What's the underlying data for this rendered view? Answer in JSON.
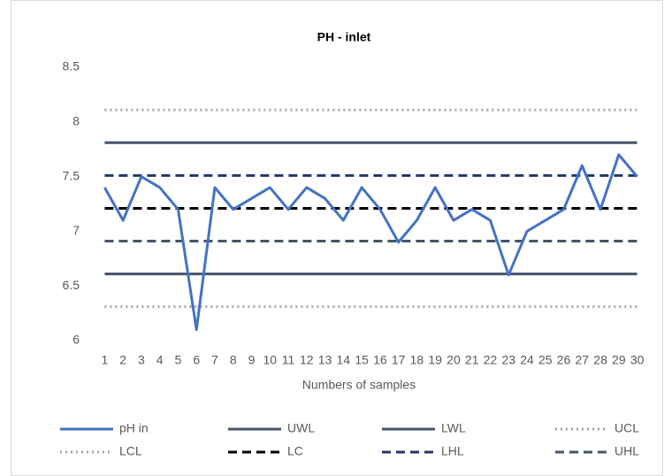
{
  "chart_data": {
    "type": "line",
    "title": "PH - inlet",
    "x_label": "Numbers of samples",
    "categories": [
      "1",
      "2",
      "3",
      "4",
      "5",
      "6",
      "7",
      "8",
      "9",
      "10",
      "11",
      "12",
      "13",
      "14",
      "15",
      "16",
      "17",
      "18",
      "19",
      "20",
      "21",
      "22",
      "23",
      "24",
      "25",
      "26",
      "27",
      "28",
      "29",
      "30"
    ],
    "ylim": [
      6,
      8.5
    ],
    "yticks": [
      6,
      6.5,
      7,
      7.5,
      8,
      8.5
    ],
    "grid": false,
    "legend": "bottom",
    "series": [
      {
        "name": "pH in",
        "color": "#4472c4",
        "style": "solid",
        "values": [
          7.4,
          7.1,
          7.5,
          7.4,
          7.2,
          6.1,
          7.4,
          7.2,
          7.3,
          7.4,
          7.2,
          7.4,
          7.3,
          7.1,
          7.4,
          7.2,
          6.9,
          7.1,
          7.4,
          7.1,
          7.2,
          7.1,
          6.6,
          7.0,
          7.1,
          7.2,
          7.6,
          7.2,
          7.7,
          7.5
        ]
      },
      {
        "name": "UWL",
        "color": "#44546a",
        "style": "solid",
        "values": [
          7.81,
          7.81,
          7.81,
          7.81,
          7.81,
          7.81,
          7.81,
          7.81,
          7.81,
          7.81,
          7.81,
          7.81,
          7.81,
          7.81,
          7.81,
          7.81,
          7.81,
          7.81,
          7.81,
          7.81,
          7.81,
          7.81,
          7.81,
          7.81,
          7.81,
          7.81,
          7.81,
          7.81,
          7.81,
          7.81
        ]
      },
      {
        "name": "LWL",
        "color": "#44546a",
        "style": "solid",
        "values": [
          6.61,
          6.61,
          6.61,
          6.61,
          6.61,
          6.61,
          6.61,
          6.61,
          6.61,
          6.61,
          6.61,
          6.61,
          6.61,
          6.61,
          6.61,
          6.61,
          6.61,
          6.61,
          6.61,
          6.61,
          6.61,
          6.61,
          6.61,
          6.61,
          6.61,
          6.61,
          6.61,
          6.61,
          6.61,
          6.61
        ]
      },
      {
        "name": "UCL",
        "color": "#a5a5a5",
        "style": "dotted",
        "values": [
          8.11,
          8.11,
          8.11,
          8.11,
          8.11,
          8.11,
          8.11,
          8.11,
          8.11,
          8.11,
          8.11,
          8.11,
          8.11,
          8.11,
          8.11,
          8.11,
          8.11,
          8.11,
          8.11,
          8.11,
          8.11,
          8.11,
          8.11,
          8.11,
          8.11,
          8.11,
          8.11,
          8.11,
          8.11,
          8.11
        ]
      },
      {
        "name": "LCL",
        "color": "#a5a5a5",
        "style": "dotted",
        "values": [
          6.31,
          6.31,
          6.31,
          6.31,
          6.31,
          6.31,
          6.31,
          6.31,
          6.31,
          6.31,
          6.31,
          6.31,
          6.31,
          6.31,
          6.31,
          6.31,
          6.31,
          6.31,
          6.31,
          6.31,
          6.31,
          6.31,
          6.31,
          6.31,
          6.31,
          6.31,
          6.31,
          6.31,
          6.31,
          6.31
        ]
      },
      {
        "name": "LC",
        "color": "#000000",
        "style": "dashed",
        "values": [
          7.21,
          7.21,
          7.21,
          7.21,
          7.21,
          7.21,
          7.21,
          7.21,
          7.21,
          7.21,
          7.21,
          7.21,
          7.21,
          7.21,
          7.21,
          7.21,
          7.21,
          7.21,
          7.21,
          7.21,
          7.21,
          7.21,
          7.21,
          7.21,
          7.21,
          7.21,
          7.21,
          7.21,
          7.21,
          7.21
        ]
      },
      {
        "name": "LHL",
        "color": "#203864",
        "style": "dashed",
        "values": [
          7.51,
          7.51,
          7.51,
          7.51,
          7.51,
          7.51,
          7.51,
          7.51,
          7.51,
          7.51,
          7.51,
          7.51,
          7.51,
          7.51,
          7.51,
          7.51,
          7.51,
          7.51,
          7.51,
          7.51,
          7.51,
          7.51,
          7.51,
          7.51,
          7.51,
          7.51,
          7.51,
          7.51,
          7.51,
          7.51
        ]
      },
      {
        "name": "UHL",
        "color": "#44546a",
        "style": "dashed",
        "values": [
          6.91,
          6.91,
          6.91,
          6.91,
          6.91,
          6.91,
          6.91,
          6.91,
          6.91,
          6.91,
          6.91,
          6.91,
          6.91,
          6.91,
          6.91,
          6.91,
          6.91,
          6.91,
          6.91,
          6.91,
          6.91,
          6.91,
          6.91,
          6.91,
          6.91,
          6.91,
          6.91,
          6.91,
          6.91,
          6.91
        ]
      }
    ]
  }
}
